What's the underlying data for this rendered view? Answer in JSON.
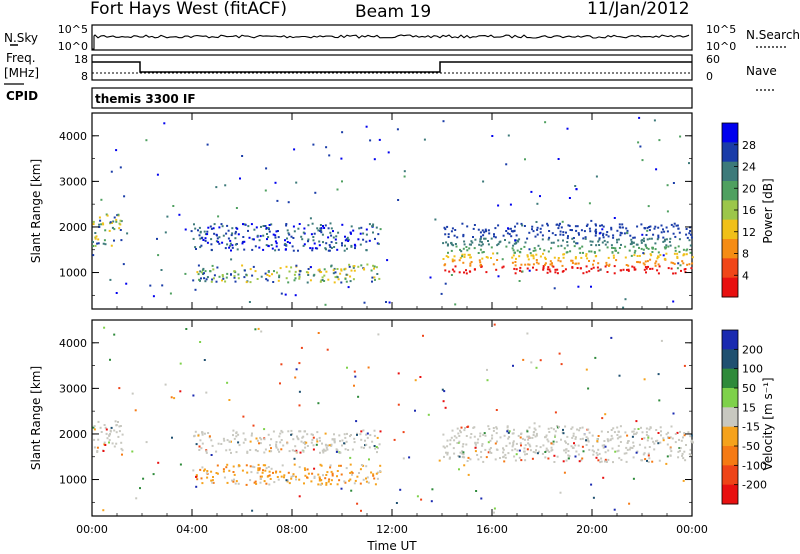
{
  "header": {
    "station": "Fort Hays West (fitACF)",
    "beam": "Beam 19",
    "date": "11/Jan/2012"
  },
  "panels": {
    "nsky_label": "N.Sky",
    "nsearch_label": "N.Search",
    "freq_label": "Freq.",
    "freq_unit": "[MHz]",
    "nave_label": "Nave",
    "cpid_label": "CPID",
    "cpid_value": "themis 3300 IF",
    "noise_ticks_left": [
      "10^5",
      "10^0"
    ],
    "noise_ticks_right": [
      "10^5",
      "10^0"
    ],
    "freq_ticks_left": [
      "18",
      "8"
    ],
    "nave_ticks_right": [
      "60",
      "0"
    ]
  },
  "chart_data": [
    {
      "type": "heatmap",
      "name": "power",
      "ylabel": "Slant Range [km]",
      "xlabel": "",
      "ylim": [
        200,
        4500
      ],
      "xlim_hours": [
        0,
        24
      ],
      "y_ticks": [
        "4000",
        "3000",
        "2000",
        "1000"
      ],
      "colorbar_label": "Power [dB]",
      "colorbar_ticks": [
        "28",
        "24",
        "20",
        "16",
        "12",
        "8",
        "4"
      ],
      "colorbar_colors": [
        "#0000ee",
        "#1a3ca8",
        "#3d7a7a",
        "#4fa060",
        "#9cc64a",
        "#f0c018",
        "#f58c14",
        "#f04618",
        "#e81010"
      ],
      "echo_regions": [
        {
          "start": 0.0,
          "end": 1.2,
          "range_low": 1600,
          "range_high": 2300,
          "level": "moderate"
        },
        {
          "start": 4.0,
          "end": 11.5,
          "range_low": 800,
          "range_high": 1200,
          "level": "moderate"
        },
        {
          "start": 4.0,
          "end": 11.5,
          "range_low": 1500,
          "range_high": 2100,
          "level": "weak"
        },
        {
          "start": 14.0,
          "end": 24.0,
          "range_low": 1000,
          "range_high": 2100,
          "level": "strong"
        }
      ]
    },
    {
      "type": "heatmap",
      "name": "velocity",
      "ylabel": "Slant Range [km]",
      "xlabel": "Time UT",
      "ylim": [
        200,
        4500
      ],
      "xlim_hours": [
        0,
        24
      ],
      "y_ticks": [
        "4000",
        "3000",
        "2000",
        "1000"
      ],
      "x_ticks": [
        "00:00",
        "04:00",
        "08:00",
        "12:00",
        "16:00",
        "20:00",
        "00:00"
      ],
      "colorbar_label": "Velocity [m s⁻¹]",
      "colorbar_ticks": [
        "200",
        "100",
        "50",
        "15",
        "-15",
        "-50",
        "-100",
        "-200"
      ],
      "colorbar_colors": [
        "#1a2ab0",
        "#1f5070",
        "#2e8a3a",
        "#7ed14a",
        "#c8c8c0",
        "#f5a21c",
        "#f57a14",
        "#ee4418",
        "#e81010"
      ],
      "echo_regions": [
        {
          "start": 0.0,
          "end": 1.2,
          "range_low": 1600,
          "range_high": 2300,
          "velocity": "near-zero"
        },
        {
          "start": 4.0,
          "end": 11.5,
          "range_low": 900,
          "range_high": 1350,
          "velocity": "-15 to -50"
        },
        {
          "start": 4.0,
          "end": 11.5,
          "range_low": 1600,
          "range_high": 2100,
          "velocity": "near-zero"
        },
        {
          "start": 14.0,
          "end": 24.0,
          "range_low": 1400,
          "range_high": 2200,
          "velocity": "near-zero"
        }
      ]
    }
  ]
}
